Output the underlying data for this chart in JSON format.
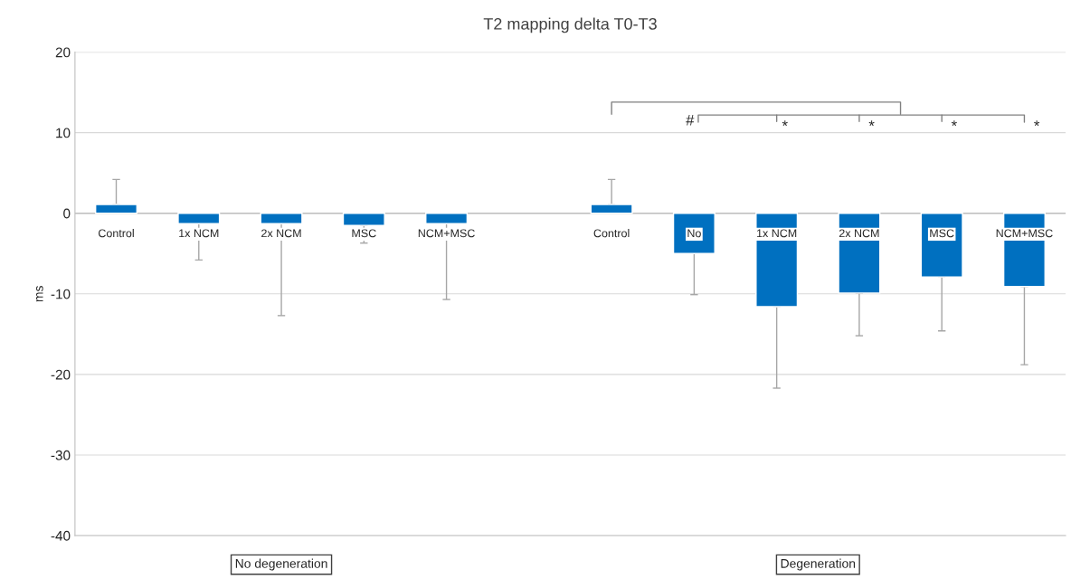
{
  "chart_data": {
    "type": "bar",
    "title": "T2 mapping delta T0-T3",
    "ylabel": "ms",
    "categories": [
      "Control",
      "1x NCM",
      "2x NCM",
      "MSC",
      "NCM+MSC",
      null,
      "Control",
      "No",
      "1x NCM",
      "2x NCM",
      "MSC",
      "NCM+MSC"
    ],
    "values": [
      1.1,
      -1.3,
      -1.3,
      -1.5,
      -1.3,
      null,
      1.1,
      -5.0,
      -11.6,
      -9.9,
      -7.9,
      -9.1
    ],
    "errors": [
      [
        1.1,
        4.2
      ],
      [
        -5.8,
        -1.3
      ],
      [
        -12.7,
        -1.3
      ],
      [
        -3.7,
        -1.5
      ],
      [
        -10.7,
        -1.3
      ],
      null,
      [
        1.1,
        4.2
      ],
      [
        -10.1,
        -5.0
      ],
      [
        -21.7,
        -11.6
      ],
      [
        -15.2,
        -9.9
      ],
      [
        -14.6,
        -7.9
      ],
      [
        -18.8,
        -9.1
      ]
    ],
    "color": "#0070c0",
    "ylim": [
      -40,
      20
    ],
    "yticks": [
      -40,
      -30,
      -20,
      -10,
      0,
      10,
      20
    ],
    "grid": "y",
    "annotations": [
      "#",
      "*",
      "*",
      "*",
      "*",
      "No degeneration",
      "Degeneration"
    ]
  }
}
